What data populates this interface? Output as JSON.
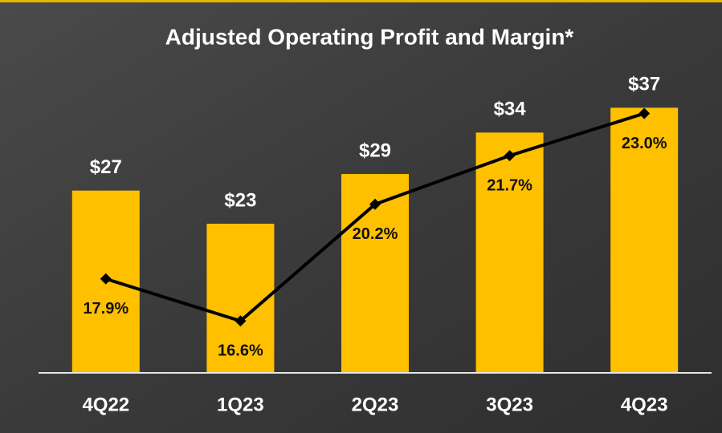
{
  "chart_data": {
    "type": "bar-line",
    "title": "Adjusted Operating Profit and Margin*",
    "categories": [
      "4Q22",
      "1Q23",
      "2Q23",
      "3Q23",
      "4Q23"
    ],
    "series": [
      {
        "name": "Adjusted Operating Profit",
        "type": "bar",
        "color": "#ffc000",
        "values": [
          27,
          23,
          29,
          34,
          37
        ],
        "value_labels": [
          "$27",
          "$23",
          "$29",
          "$34",
          "$37"
        ]
      },
      {
        "name": "Margin",
        "type": "line",
        "axis": "y2",
        "color": "#000000",
        "values": [
          17.9,
          16.6,
          20.2,
          21.7,
          23.0
        ],
        "value_labels": [
          "17.9%",
          "16.6%",
          "20.2%",
          "21.7%",
          "23.0%"
        ]
      }
    ],
    "ylim": [
      5,
      41
    ],
    "y2lim": [
      15,
      24.2
    ]
  }
}
